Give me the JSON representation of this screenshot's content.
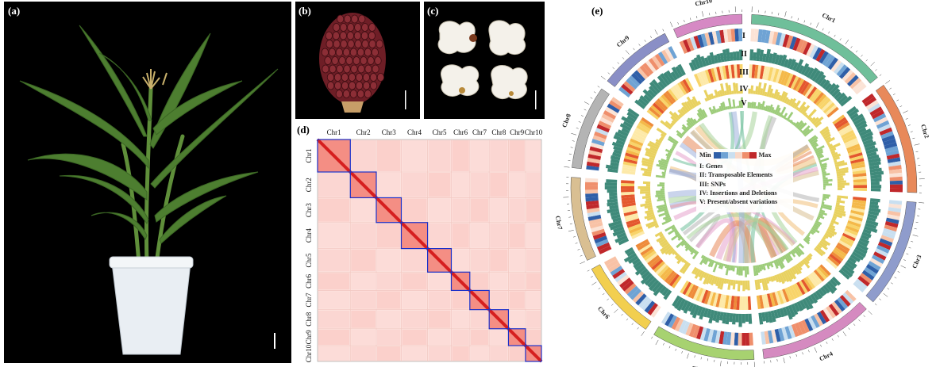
{
  "panels": {
    "a": {
      "label": "(a)"
    },
    "b": {
      "label": "(b)"
    },
    "c": {
      "label": "(c)"
    },
    "d": {
      "label": "(d)"
    },
    "e": {
      "label": "(e)"
    }
  },
  "hic": {
    "top_labels": [
      "Chr1",
      "Chr2",
      "Chr3",
      "Chr4",
      "Chr5",
      "Chr6",
      "Chr7",
      "Chr8",
      "Chr9",
      "Chr10"
    ],
    "left_labels": [
      "Chr1",
      "Chr2",
      "Chr3",
      "Chr4",
      "Chr5",
      "Chr6",
      "Chr7",
      "Chr8",
      "Chr9",
      "Chr10"
    ],
    "sizes": [
      308,
      244,
      235,
      247,
      223,
      174,
      182,
      181,
      160,
      150
    ]
  },
  "circos": {
    "chromosomes": [
      "Chr1",
      "Chr2",
      "Chr3",
      "Chr4",
      "Chr5",
      "Chr6",
      "Chr7",
      "Chr8",
      "Chr9",
      "Chr10"
    ],
    "chromosome_colors": [
      "#6fbf9a",
      "#e8895a",
      "#8f9ccc",
      "#d58ac0",
      "#a7d270",
      "#f2cf4f",
      "#d9bf92",
      "#b4b4b4",
      "#8a8fc6",
      "#d689c4"
    ],
    "chromosome_sizes": [
      308,
      244,
      235,
      247,
      223,
      174,
      182,
      181,
      160,
      150
    ],
    "track_labels": [
      "I",
      "II",
      "III",
      "IV",
      "V"
    ],
    "legend": {
      "min_label": "Min",
      "max_label": "Max",
      "scale_colors": [
        "#2f5fa8",
        "#6fa3d4",
        "#c9dff0",
        "#f8d8c8",
        "#ef8f6c",
        "#c0282b"
      ],
      "items": [
        "I: Genes",
        "II: Transposable Elements",
        "III: SNPs",
        "IV: Insertions and Deletions",
        "V: Present/absent variations"
      ]
    }
  }
}
